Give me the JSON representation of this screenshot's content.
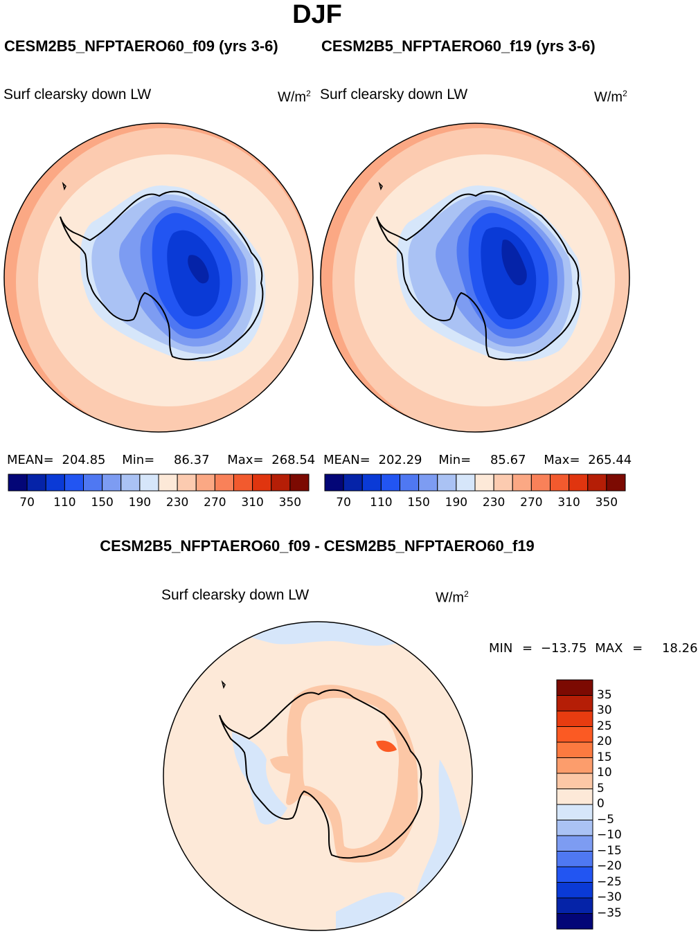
{
  "season": "DJF",
  "panels": [
    {
      "case_title": "CESM2B5_NFPTAERO60_f09 (yrs 3-6)",
      "variable": "Surf clearsky down LW",
      "units": "W/m",
      "units_sup": "2",
      "mean_label": "MEAN=",
      "mean": "204.85",
      "min_label": "Min=",
      "min": "86.37",
      "max_label": "Max=",
      "max": "268.54"
    },
    {
      "case_title": "CESM2B5_NFPTAERO60_f19 (yrs 3-6)",
      "variable": "Surf clearsky down LW",
      "units": "W/m",
      "units_sup": "2",
      "mean_label": "MEAN=",
      "mean": "202.29",
      "min_label": "Min=",
      "min": "85.67",
      "max_label": "Max=",
      "max": "265.44"
    }
  ],
  "difference": {
    "title": "CESM2B5_NFPTAERO60_f09 - CESM2B5_NFPTAERO60_f19",
    "variable": "Surf clearsky down LW",
    "units": "W/m",
    "units_sup": "2",
    "min_label": "MIN",
    "min": "−13.75",
    "max_label": "MAX",
    "max": "18.26",
    "eq": "="
  },
  "colorbar_abs": {
    "colors": [
      "#030677",
      "#0523a8",
      "#0a3ad6",
      "#2255f2",
      "#4f78f2",
      "#7d9cf2",
      "#aac2f4",
      "#d6e6fa",
      "#fde9d8",
      "#fccbb0",
      "#fba884",
      "#f98159",
      "#f25a2e",
      "#e0350f",
      "#b51e06",
      "#7c0a02"
    ],
    "tick_labels": [
      "70",
      "110",
      "150",
      "190",
      "230",
      "270",
      "310",
      "350"
    ]
  },
  "colorbar_diff": {
    "colors": [
      "#7c0a02",
      "#b51e06",
      "#e83c10",
      "#fb5a23",
      "#fc7a40",
      "#fc9d6c",
      "#fcc7a6",
      "#fde9d8",
      "#d6e6fa",
      "#aac2f4",
      "#7d9cf2",
      "#4f78f2",
      "#2255f2",
      "#0a3ad6",
      "#0523a8",
      "#030677"
    ],
    "tick_labels": [
      "35",
      "30",
      "25",
      "20",
      "15",
      "10",
      "5",
      "0",
      "−5",
      "−10",
      "−15",
      "−20",
      "−25",
      "−30",
      "−35"
    ]
  },
  "chart_data": [
    {
      "type": "map",
      "projection": "south polar stereographic",
      "title": "CESM2B5_NFPTAERO60_f09 (yrs 3-6)",
      "variable": "Surf clearsky down LW",
      "units": "W/m2",
      "levels": [
        70,
        90,
        110,
        130,
        150,
        170,
        190,
        210,
        230,
        250,
        270,
        290,
        310,
        330,
        350
      ],
      "mean": 204.85,
      "min": 86.37,
      "max": 268.54
    },
    {
      "type": "map",
      "projection": "south polar stereographic",
      "title": "CESM2B5_NFPTAERO60_f19 (yrs 3-6)",
      "variable": "Surf clearsky down LW",
      "units": "W/m2",
      "levels": [
        70,
        90,
        110,
        130,
        150,
        170,
        190,
        210,
        230,
        250,
        270,
        290,
        310,
        330,
        350
      ],
      "mean": 202.29,
      "min": 85.67,
      "max": 265.44
    },
    {
      "type": "map",
      "projection": "south polar stereographic",
      "title": "CESM2B5_NFPTAERO60_f09 - CESM2B5_NFPTAERO60_f19",
      "variable": "Surf clearsky down LW",
      "units": "W/m2",
      "levels": [
        -35,
        -30,
        -25,
        -20,
        -15,
        -10,
        -5,
        0,
        5,
        10,
        15,
        20,
        25,
        30,
        35
      ],
      "min": -13.75,
      "max": 18.26
    }
  ]
}
